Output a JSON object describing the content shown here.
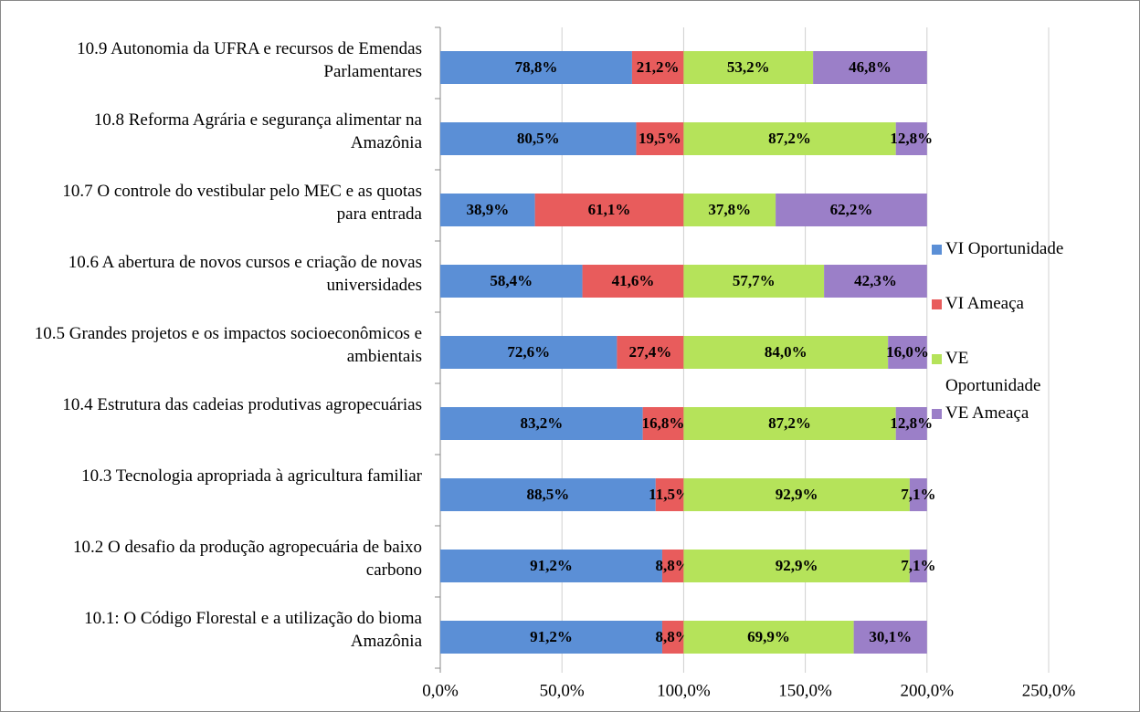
{
  "chart_data": {
    "type": "stacked-barh",
    "categories": [
      "10.9 Autonomia da UFRA e recursos de Emendas Parlamentares",
      "10.8 Reforma Agrária e segurança alimentar na Amazônia",
      "10.7 O controle do vestibular pelo MEC e as quotas para entrada",
      "10.6 A abertura de novos cursos e criação de novas universidades",
      "10.5 Grandes projetos e os impactos socioeconômicos e ambientais",
      "10.4 Estrutura das cadeias produtivas agropecuárias",
      "10.3 Tecnologia apropriada à agricultura familiar",
      "10.2 O desafio da produção agropecuária de baixo carbono",
      "10.1: O Código Florestal e a utilização do bioma Amazônia"
    ],
    "series": [
      {
        "name": "VI Oportunidade",
        "color": "#5b8fd6",
        "values": [
          78.8,
          80.5,
          38.9,
          58.4,
          72.6,
          83.2,
          88.5,
          91.2,
          91.2
        ],
        "value_labels": [
          "78,8%",
          "80,5%",
          "38,9%",
          "58,4%",
          "72,6%",
          "83,2%",
          "88,5%",
          "91,2%",
          "91,2%"
        ]
      },
      {
        "name": "VI Ameaça",
        "color": "#e85c5c",
        "values": [
          21.2,
          19.5,
          61.1,
          41.6,
          27.4,
          16.8,
          11.5,
          8.8,
          8.8
        ],
        "value_labels": [
          "21,2%",
          "19,5%",
          "61,1%",
          "41,6%",
          "27,4%",
          "16,8%",
          "11,5%",
          "8,8%",
          "8,8%"
        ]
      },
      {
        "name": "VE Oportunidade",
        "color": "#b5e35a",
        "values": [
          53.2,
          87.2,
          37.8,
          57.7,
          84.0,
          87.2,
          92.9,
          92.9,
          69.9
        ],
        "value_labels": [
          "53,2%",
          "87,2%",
          "37,8%",
          "57,7%",
          "84,0%",
          "87,2%",
          "92,9%",
          "92,9%",
          "69,9%"
        ]
      },
      {
        "name": "VE Ameaça",
        "color": "#9b7fc8",
        "values": [
          46.8,
          12.8,
          62.2,
          42.3,
          16.0,
          12.8,
          7.1,
          7.1,
          30.1
        ],
        "value_labels": [
          "46,8%",
          "12,8%",
          "62,2%",
          "42,3%",
          "16,0%",
          "12,8%",
          "7,1%",
          "7,1%",
          "30,1%"
        ]
      }
    ],
    "xlim": [
      0,
      250
    ],
    "xticks": [
      {
        "value": 0,
        "label": "0,0%"
      },
      {
        "value": 50,
        "label": "50,0%"
      },
      {
        "value": 100,
        "label": "100,0%"
      },
      {
        "value": 150,
        "label": "150,0%"
      },
      {
        "value": 200,
        "label": "200,0%"
      },
      {
        "value": 250,
        "label": "250,0%"
      }
    ],
    "grid": true,
    "legend": "right"
  }
}
